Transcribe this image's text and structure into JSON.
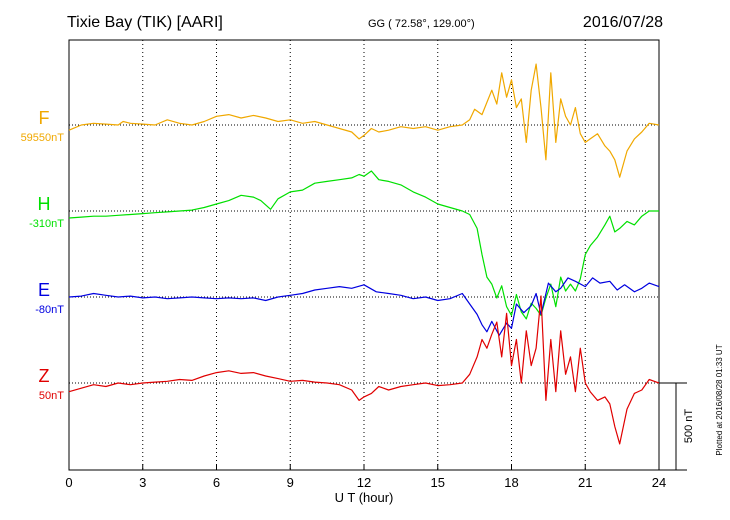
{
  "header": {
    "station": "Tixie Bay (TIK)  [AARI]",
    "coords": "GG ( 72.58°, 129.00°)",
    "date": "2016/07/28"
  },
  "plotted_note": "Plotted at 2016/08/28 01:33 UT",
  "chart_data": {
    "type": "line",
    "title": "Tixie Bay (TIK)  [AARI]",
    "xlabel": "U T (hour)",
    "xlim": [
      0,
      24
    ],
    "xticks": [
      0,
      3,
      6,
      9,
      12,
      15,
      18,
      21,
      24
    ],
    "grid": true,
    "scale_bar": {
      "label": "500 nT",
      "value_nT": 500
    },
    "series": [
      {
        "name": "F",
        "baseline_label": "59550nT",
        "baseline_nT": 59550,
        "color": "#f0a800",
        "x": [
          0,
          0.5,
          1,
          1.5,
          2,
          2.2,
          2.5,
          3,
          3.5,
          4,
          4.5,
          5,
          5.5,
          6,
          6.5,
          7,
          7.5,
          8,
          8.5,
          9,
          9.5,
          10,
          10.5,
          11,
          11.5,
          11.8,
          12,
          12.3,
          12.6,
          13,
          13.5,
          14,
          14.5,
          15,
          15.5,
          16,
          16.3,
          16.5,
          16.8,
          17,
          17.2,
          17.4,
          17.6,
          17.8,
          18,
          18.2,
          18.4,
          18.6,
          18.8,
          19,
          19.2,
          19.4,
          19.6,
          19.8,
          20,
          20.2,
          20.4,
          20.6,
          20.8,
          21,
          21.2,
          21.5,
          21.8,
          22,
          22.2,
          22.4,
          22.7,
          23,
          23.3,
          23.6,
          24
        ],
        "y": [
          -30,
          0,
          10,
          5,
          0,
          20,
          10,
          5,
          0,
          30,
          10,
          0,
          20,
          50,
          60,
          40,
          55,
          40,
          20,
          30,
          10,
          20,
          0,
          -20,
          -40,
          -80,
          -60,
          -20,
          -40,
          -30,
          -10,
          -20,
          -10,
          -30,
          -10,
          0,
          30,
          90,
          60,
          130,
          200,
          120,
          300,
          160,
          260,
          100,
          150,
          -100,
          200,
          350,
          100,
          -200,
          300,
          -100,
          150,
          50,
          0,
          100,
          -50,
          -100,
          -80,
          -50,
          -120,
          -150,
          -200,
          -300,
          -150,
          -80,
          -40,
          10,
          0
        ]
      },
      {
        "name": "H",
        "baseline_label": "-310nT",
        "baseline_nT": -310,
        "color": "#00e000",
        "x": [
          0,
          0.5,
          1,
          1.5,
          2,
          2.5,
          3,
          3.5,
          4,
          4.5,
          5,
          5.5,
          6,
          6.5,
          7,
          7.5,
          7.8,
          8.2,
          8.5,
          9,
          9.5,
          10,
          10.5,
          11,
          11.5,
          11.8,
          12,
          12.3,
          12.6,
          13,
          13.5,
          14,
          14.5,
          15,
          15.5,
          16,
          16.3,
          16.6,
          16.8,
          17,
          17.2,
          17.4,
          17.6,
          17.8,
          18,
          18.2,
          18.4,
          18.6,
          18.8,
          19,
          19.2,
          19.4,
          19.6,
          19.8,
          20,
          20.2,
          20.4,
          20.6,
          20.8,
          21,
          21.2,
          21.5,
          21.8,
          22,
          22.2,
          22.4,
          22.7,
          23,
          23.3,
          23.6,
          24
        ],
        "y": [
          -40,
          -35,
          -30,
          -30,
          -25,
          -20,
          -15,
          -10,
          -5,
          0,
          5,
          20,
          40,
          60,
          90,
          80,
          60,
          10,
          70,
          110,
          120,
          160,
          170,
          180,
          190,
          210,
          200,
          230,
          180,
          170,
          150,
          110,
          80,
          40,
          20,
          0,
          -20,
          -100,
          -250,
          -380,
          -420,
          -500,
          -430,
          -550,
          -600,
          -480,
          -580,
          -620,
          -530,
          -560,
          -600,
          -500,
          -420,
          -550,
          -380,
          -460,
          -420,
          -460,
          -390,
          -250,
          -200,
          -150,
          -80,
          -30,
          -120,
          -100,
          -60,
          -80,
          -30,
          0,
          0
        ]
      },
      {
        "name": "E",
        "baseline_label": "-80nT",
        "baseline_nT": -80,
        "color": "#0000e0",
        "x": [
          0,
          0.5,
          1,
          1.5,
          2,
          2.5,
          3,
          3.5,
          4,
          4.5,
          5,
          5.5,
          6,
          6.5,
          7,
          7.5,
          8,
          8.5,
          9,
          9.5,
          10,
          10.5,
          11,
          11.5,
          12,
          12.5,
          13,
          13.5,
          14,
          14.5,
          15,
          15.5,
          16,
          16.3,
          16.6,
          16.8,
          17,
          17.2,
          17.5,
          17.8,
          18,
          18.2,
          18.5,
          18.8,
          19,
          19.2,
          19.5,
          19.8,
          20,
          20.3,
          20.6,
          21,
          21.3,
          21.6,
          22,
          22.3,
          22.6,
          23,
          23.3,
          23.6,
          24
        ],
        "y": [
          0,
          5,
          20,
          10,
          0,
          5,
          -5,
          0,
          -10,
          -5,
          0,
          -5,
          -10,
          -5,
          -10,
          -5,
          -20,
          0,
          10,
          20,
          40,
          50,
          60,
          50,
          70,
          30,
          20,
          10,
          -10,
          0,
          -20,
          -10,
          20,
          -40,
          -100,
          -160,
          -200,
          -140,
          -220,
          -150,
          -180,
          -40,
          -90,
          -50,
          20,
          -100,
          80,
          30,
          50,
          110,
          90,
          60,
          110,
          80,
          90,
          40,
          70,
          30,
          50,
          80,
          60
        ]
      },
      {
        "name": "Z",
        "baseline_label": "50nT",
        "baseline_nT": 50,
        "color": "#e00000",
        "x": [
          0,
          0.5,
          1,
          1.5,
          2,
          2.5,
          3,
          3.5,
          4,
          4.5,
          5,
          5.5,
          6,
          6.5,
          7,
          7.5,
          8,
          8.5,
          9,
          9.5,
          10,
          10.5,
          11,
          11.5,
          11.8,
          12,
          12.3,
          12.6,
          13,
          13.5,
          14,
          14.5,
          15,
          15.5,
          16,
          16.3,
          16.6,
          16.8,
          17,
          17.2,
          17.4,
          17.6,
          17.8,
          18,
          18.2,
          18.4,
          18.6,
          18.8,
          19,
          19.2,
          19.4,
          19.6,
          19.8,
          20,
          20.2,
          20.4,
          20.6,
          20.8,
          21,
          21.2,
          21.5,
          21.8,
          22,
          22.2,
          22.4,
          22.7,
          23,
          23.3,
          23.6,
          24
        ],
        "y": [
          -50,
          -30,
          -10,
          -20,
          0,
          -10,
          0,
          5,
          10,
          20,
          15,
          40,
          60,
          70,
          55,
          60,
          40,
          25,
          10,
          15,
          5,
          0,
          -10,
          -40,
          -100,
          -80,
          -60,
          -20,
          -40,
          -20,
          -10,
          0,
          -15,
          -10,
          0,
          50,
          150,
          250,
          200,
          280,
          350,
          150,
          400,
          100,
          250,
          0,
          300,
          100,
          200,
          500,
          -100,
          250,
          -50,
          300,
          50,
          150,
          -50,
          200,
          0,
          -50,
          -100,
          -80,
          -120,
          -250,
          -350,
          -150,
          -60,
          -40,
          20,
          0
        ]
      }
    ]
  }
}
